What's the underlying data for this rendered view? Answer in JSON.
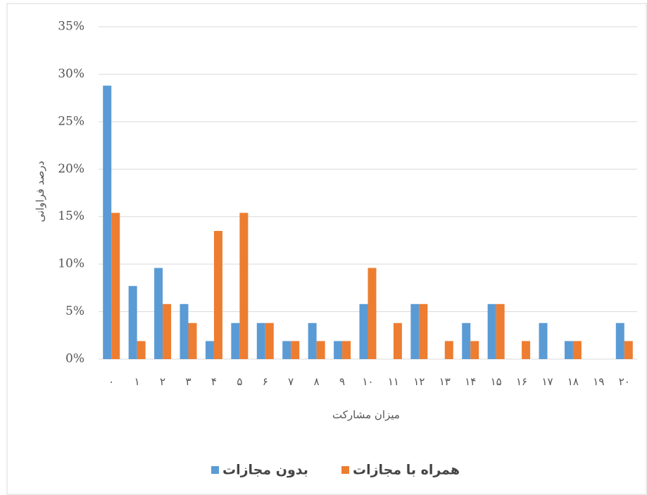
{
  "chart_data": {
    "type": "bar",
    "x_label": "میزان مشارکت",
    "y_label": "درصد فراوانی",
    "categories": [
      "۰",
      "۱",
      "۲",
      "۳",
      "۴",
      "۵",
      "۶",
      "۷",
      "۸",
      "۹",
      "۱۰",
      "۱۱",
      "۱۲",
      "۱۳",
      "۱۴",
      "۱۵",
      "۱۶",
      "۱۷",
      "۱۸",
      "۱۹",
      "۲۰"
    ],
    "series": [
      {
        "name": "بدون مجازات",
        "color": "#5b9bd5",
        "values": [
          28.8,
          7.7,
          9.6,
          5.8,
          1.9,
          3.8,
          3.8,
          1.9,
          3.8,
          1.9,
          5.8,
          0,
          5.8,
          0,
          3.8,
          5.8,
          0,
          3.8,
          1.9,
          0,
          3.8
        ]
      },
      {
        "name": "همراه با مجازات",
        "color": "#ed7d31",
        "values": [
          15.4,
          1.9,
          5.8,
          3.8,
          13.5,
          15.4,
          3.8,
          1.9,
          1.9,
          1.9,
          9.6,
          3.8,
          5.8,
          1.9,
          1.9,
          5.8,
          1.9,
          0,
          1.9,
          0,
          1.9
        ]
      }
    ],
    "ylim": [
      0,
      35
    ],
    "yticks": [
      {
        "value": 0,
        "label": "0%"
      },
      {
        "value": 5,
        "label": "5%"
      },
      {
        "value": 10,
        "label": "10%"
      },
      {
        "value": 15,
        "label": "15%"
      },
      {
        "value": 20,
        "label": "20%"
      },
      {
        "value": 25,
        "label": "25%"
      },
      {
        "value": 30,
        "label": "30%"
      },
      {
        "value": 35,
        "label": "35%"
      }
    ],
    "grid": true,
    "legend": "bottom"
  }
}
